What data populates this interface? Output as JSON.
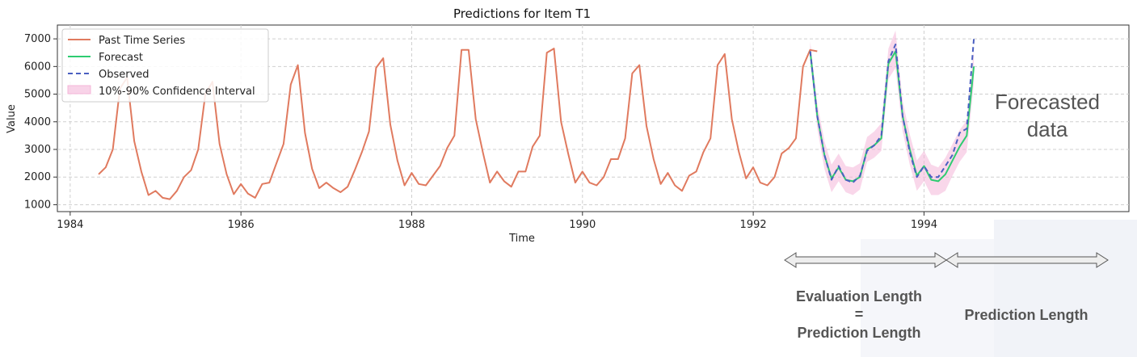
{
  "chart_data": {
    "type": "line",
    "title": "Predictions for Item T1",
    "xlabel": "Time",
    "ylabel": "Value",
    "xlim": [
      1983.85,
      1996.4
    ],
    "ylim": [
      750,
      7500
    ],
    "grid": true,
    "legend_position": "top-left",
    "x_ticks": [
      1984,
      1986,
      1988,
      1990,
      1992,
      1994
    ],
    "x_tick_labels": [
      "1984",
      "1986",
      "1988",
      "1990",
      "1992",
      "1994"
    ],
    "y_ticks": [
      1000,
      2000,
      3000,
      4000,
      5000,
      6000,
      7000
    ],
    "y_tick_labels": [
      "1000",
      "2000",
      "3000",
      "4000",
      "5000",
      "6000",
      "7000"
    ],
    "legend": [
      "Past Time Series",
      "Forecast",
      "Observed",
      "10%-90% Confidence Interval"
    ],
    "series": [
      {
        "name": "Past Time Series",
        "color": "#e07a5f",
        "style": "solid",
        "x_start": 1984.333,
        "x_step": 0.08333,
        "values": [
          2100,
          2350,
          3000,
          5200,
          5600,
          3300,
          2200,
          1350,
          1500,
          1250,
          1200,
          1500,
          2000,
          2250,
          3000,
          5000,
          5450,
          3200,
          2100,
          1380,
          1750,
          1400,
          1250,
          1750,
          1800,
          2500,
          3200,
          5350,
          6050,
          3600,
          2300,
          1600,
          1800,
          1600,
          1450,
          1650,
          2250,
          2900,
          3650,
          5950,
          6300,
          3900,
          2600,
          1700,
          2150,
          1750,
          1700,
          2050,
          2400,
          3050,
          3500,
          6600,
          6600,
          4100,
          2900,
          1800,
          2200,
          1850,
          1650,
          2200,
          2200,
          3100,
          3500,
          6500,
          6650,
          4000,
          2850,
          1800,
          2200,
          1800,
          1700,
          2000,
          2650,
          2650,
          3400,
          5750,
          6050,
          3850,
          2650,
          1750,
          2150,
          1700,
          1500,
          2050,
          2200,
          2900,
          3400,
          6050,
          6450,
          4100,
          2900,
          1950,
          2350,
          1800,
          1700,
          2000,
          2850,
          3050,
          3400,
          6000,
          6600,
          6550
        ]
      },
      {
        "name": "Forecast",
        "color": "#2ecc71",
        "style": "solid",
        "x_start": 1992.667,
        "x_step": 0.08333,
        "values": [
          6550,
          4200,
          2800,
          1950,
          2350,
          1900,
          1850,
          2000,
          3000,
          3150,
          3400,
          6100,
          6550,
          4200,
          3000,
          2050,
          2400,
          1900,
          1850,
          2100,
          2600,
          3100,
          3500,
          6000
        ]
      },
      {
        "name": "Observed",
        "color": "#4a5fc1",
        "style": "dashed",
        "x_start": 1992.667,
        "x_step": 0.08333,
        "values": [
          6550,
          4200,
          2800,
          1900,
          2400,
          1900,
          1800,
          2050,
          2950,
          3150,
          3500,
          6200,
          6800,
          4200,
          2900,
          2000,
          2400,
          2000,
          2000,
          2400,
          2800,
          3600,
          3750,
          7000
        ]
      },
      {
        "name": "10%-90% Confidence Interval",
        "color": "#f4b6d8",
        "style": "band",
        "x_start": 1992.667,
        "x_step": 0.08333,
        "lower": [
          6200,
          3750,
          2300,
          1450,
          1850,
          1450,
          1350,
          1550,
          2550,
          2700,
          2950,
          5550,
          5950,
          3650,
          2450,
          1500,
          1850,
          1350,
          1350,
          1500,
          2050,
          2550,
          2900,
          5400
        ],
        "upper": [
          6900,
          4650,
          3300,
          2450,
          2850,
          2400,
          2350,
          2500,
          3450,
          3650,
          3950,
          6650,
          7300,
          4750,
          3550,
          2600,
          2950,
          2450,
          2350,
          2700,
          3200,
          3700,
          4050,
          6600
        ]
      }
    ]
  },
  "annotations": {
    "forecasted_line1": "Forecasted",
    "forecasted_line2": "data",
    "eval_line1": "Evaluation Length",
    "eval_line2": "=",
    "eval_line3": "Prediction Length",
    "pred_label": "Prediction Length"
  }
}
